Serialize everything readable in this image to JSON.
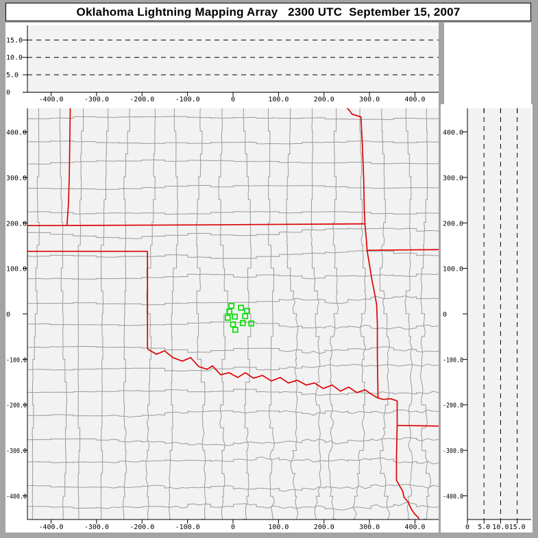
{
  "title": "Oklahoma Lightning Mapping Array   2300 UTC  September 15, 2007",
  "colors": {
    "frame": "#a4a4a4",
    "panel_bg": "#f2f2f2",
    "margin_bg": "#ffffff",
    "county_line": "#999999",
    "state_border": "#dd0000",
    "station": "#00e000",
    "axis": "#000000"
  },
  "panels": {
    "ew_altitude": {
      "y_tick_labels": [
        "15.0",
        "10.0",
        "5.0",
        "0"
      ],
      "y_tick_values": [
        15,
        10,
        5,
        0
      ],
      "dash_values": [
        5,
        10,
        15
      ],
      "alt_range": [
        0,
        19.2
      ],
      "x_tick_labels": [
        "-400.0",
        "-300.0",
        "-200.0",
        "-100.0",
        "0",
        "100.0",
        "200.0",
        "300.0",
        "400.0"
      ],
      "x_tick_values": [
        -400,
        -300,
        -200,
        -100,
        0,
        100,
        200,
        300,
        400
      ]
    },
    "plan_view": {
      "x_range": [
        -452,
        452
      ],
      "y_range": [
        -452,
        452
      ],
      "x_tick_labels": [
        "-400.0",
        "-300.0",
        "-200.0",
        "-100.0",
        "0",
        "100.0",
        "200.0",
        "300.0",
        "400.0"
      ],
      "x_tick_values": [
        -400,
        -300,
        -200,
        -100,
        0,
        100,
        200,
        300,
        400
      ],
      "y_tick_labels": [
        "400.0",
        "300.0",
        "200.0",
        "100.0",
        "0",
        "-100.0",
        "-200.0",
        "-300.0",
        "-400.0"
      ],
      "y_tick_values": [
        400,
        300,
        200,
        100,
        0,
        -100,
        -200,
        -300,
        -400
      ]
    },
    "ns_altitude": {
      "x_tick_labels": [
        "0",
        "5.0",
        "10.0",
        "15.0"
      ],
      "x_tick_values": [
        0,
        5,
        10,
        15
      ],
      "dash_values": [
        5,
        10,
        15
      ],
      "alt_range": [
        0,
        19.2
      ],
      "y_tick_labels": [
        "400.0",
        "300.0",
        "200.0",
        "100.0",
        "0",
        "-100.0",
        "-200.0",
        "-300.0",
        "-400.0"
      ],
      "y_tick_values": [
        400,
        300,
        200,
        100,
        0,
        -100,
        -200,
        -300,
        -400
      ]
    }
  },
  "chart_data": {
    "type": "scatter",
    "title": "Oklahoma Lightning Mapping Array",
    "time_label": "2300 UTC  September 15, 2007",
    "xlim_km": [
      -452,
      452
    ],
    "ylim_km": [
      -452,
      452
    ],
    "alt_lim_km": [
      0,
      19.2
    ],
    "alt_dash_km": [
      5,
      10,
      15
    ],
    "stations_km": [
      [
        -3.5,
        17.6
      ],
      [
        -8.0,
        5.0
      ],
      [
        17.6,
        13.5
      ],
      [
        31.1,
        6.5
      ],
      [
        -11.6,
        -8.6
      ],
      [
        4.1,
        -6.0
      ],
      [
        26.6,
        -5.0
      ],
      [
        0.0,
        -23.0
      ],
      [
        21.5,
        -20.0
      ],
      [
        40.2,
        -21.1
      ],
      [
        5.0,
        -35.0
      ]
    ],
    "state_borders_km": [
      [
        [
          -357.9,
          454
        ],
        [
          -359.9,
          300
        ],
        [
          -361.9,
          240
        ],
        [
          -364.9,
          196
        ]
      ],
      [
        [
          -453,
          194
        ],
        [
          -80,
          195.5
        ],
        [
          289,
          198
        ]
      ],
      [
        [
          -453,
          137.5
        ],
        [
          -188,
          137.5
        ]
      ],
      [
        [
          -188,
          137.5
        ],
        [
          -188,
          -77
        ]
      ],
      [
        [
          -188,
          -77
        ],
        [
          -168.4,
          -88.7
        ],
        [
          -150.4,
          -81.2
        ],
        [
          -132.3,
          -96.2
        ],
        [
          -111.3,
          -103.8
        ],
        [
          -93.2,
          -96.2
        ],
        [
          -75.2,
          -115.8
        ],
        [
          -57.1,
          -121.8
        ],
        [
          -45.1,
          -114.3
        ],
        [
          -27.1,
          -133.8
        ],
        [
          -9,
          -129.3
        ],
        [
          10.5,
          -139.8
        ],
        [
          27.1,
          -129.3
        ],
        [
          45.1,
          -141.4
        ],
        [
          64.7,
          -135.3
        ],
        [
          84.2,
          -147.4
        ],
        [
          103.8,
          -139.8
        ],
        [
          121.8,
          -151.9
        ],
        [
          141.4,
          -145.9
        ],
        [
          160.9,
          -156.4
        ],
        [
          178.9,
          -151.9
        ],
        [
          198.5,
          -163.9
        ],
        [
          218,
          -156.4
        ],
        [
          236.1,
          -169.9
        ],
        [
          254.1,
          -160.9
        ],
        [
          272.2,
          -172.9
        ],
        [
          290.2,
          -166.9
        ],
        [
          305.3,
          -177.4
        ],
        [
          318.8,
          -185
        ]
      ],
      [
        [
          245.1,
          457
        ],
        [
          254.1,
          449.6
        ],
        [
          261.7,
          439.1
        ],
        [
          281.2,
          433.1
        ],
        [
          284.2,
          375.9
        ],
        [
          287.2,
          300.8
        ],
        [
          288.7,
          225.6
        ],
        [
          290.2,
          195.5
        ],
        [
          293.2,
          162.4
        ],
        [
          294.7,
          139.8
        ],
        [
          299.2,
          112.8
        ],
        [
          305.3,
          75.2
        ],
        [
          311.3,
          45.1
        ],
        [
          315.8,
          19.5
        ],
        [
          317.3,
          -22.6
        ],
        [
          317.3,
          -90.2
        ],
        [
          318.8,
          -185
        ]
      ],
      [
        [
          294.7,
          139.8
        ],
        [
          453,
          141.4
        ]
      ],
      [
        [
          318.8,
          -185
        ],
        [
          330.8,
          -188
        ],
        [
          345.9,
          -186.5
        ],
        [
          360.9,
          -191
        ]
      ],
      [
        [
          360.9,
          -191
        ],
        [
          360.9,
          -245.1
        ]
      ],
      [
        [
          360.9,
          -245.1
        ],
        [
          453,
          -246.6
        ]
      ],
      [
        [
          360.9,
          -245.1
        ],
        [
          359.4,
          -315.8
        ],
        [
          359.4,
          -365.4
        ],
        [
          365.4,
          -376.7
        ],
        [
          372.9,
          -389.5
        ],
        [
          375.9,
          -403
        ],
        [
          384.9,
          -413.5
        ],
        [
          390.9,
          -427.1
        ],
        [
          398.5,
          -439.1
        ],
        [
          407.5,
          -448.1
        ],
        [
          410,
          -456
        ]
      ]
    ],
    "county_grid": {
      "spacing_x": 33.4,
      "spacing_y": 33.3,
      "jog_v": 6,
      "jog_h": 4,
      "seed": 11
    }
  }
}
